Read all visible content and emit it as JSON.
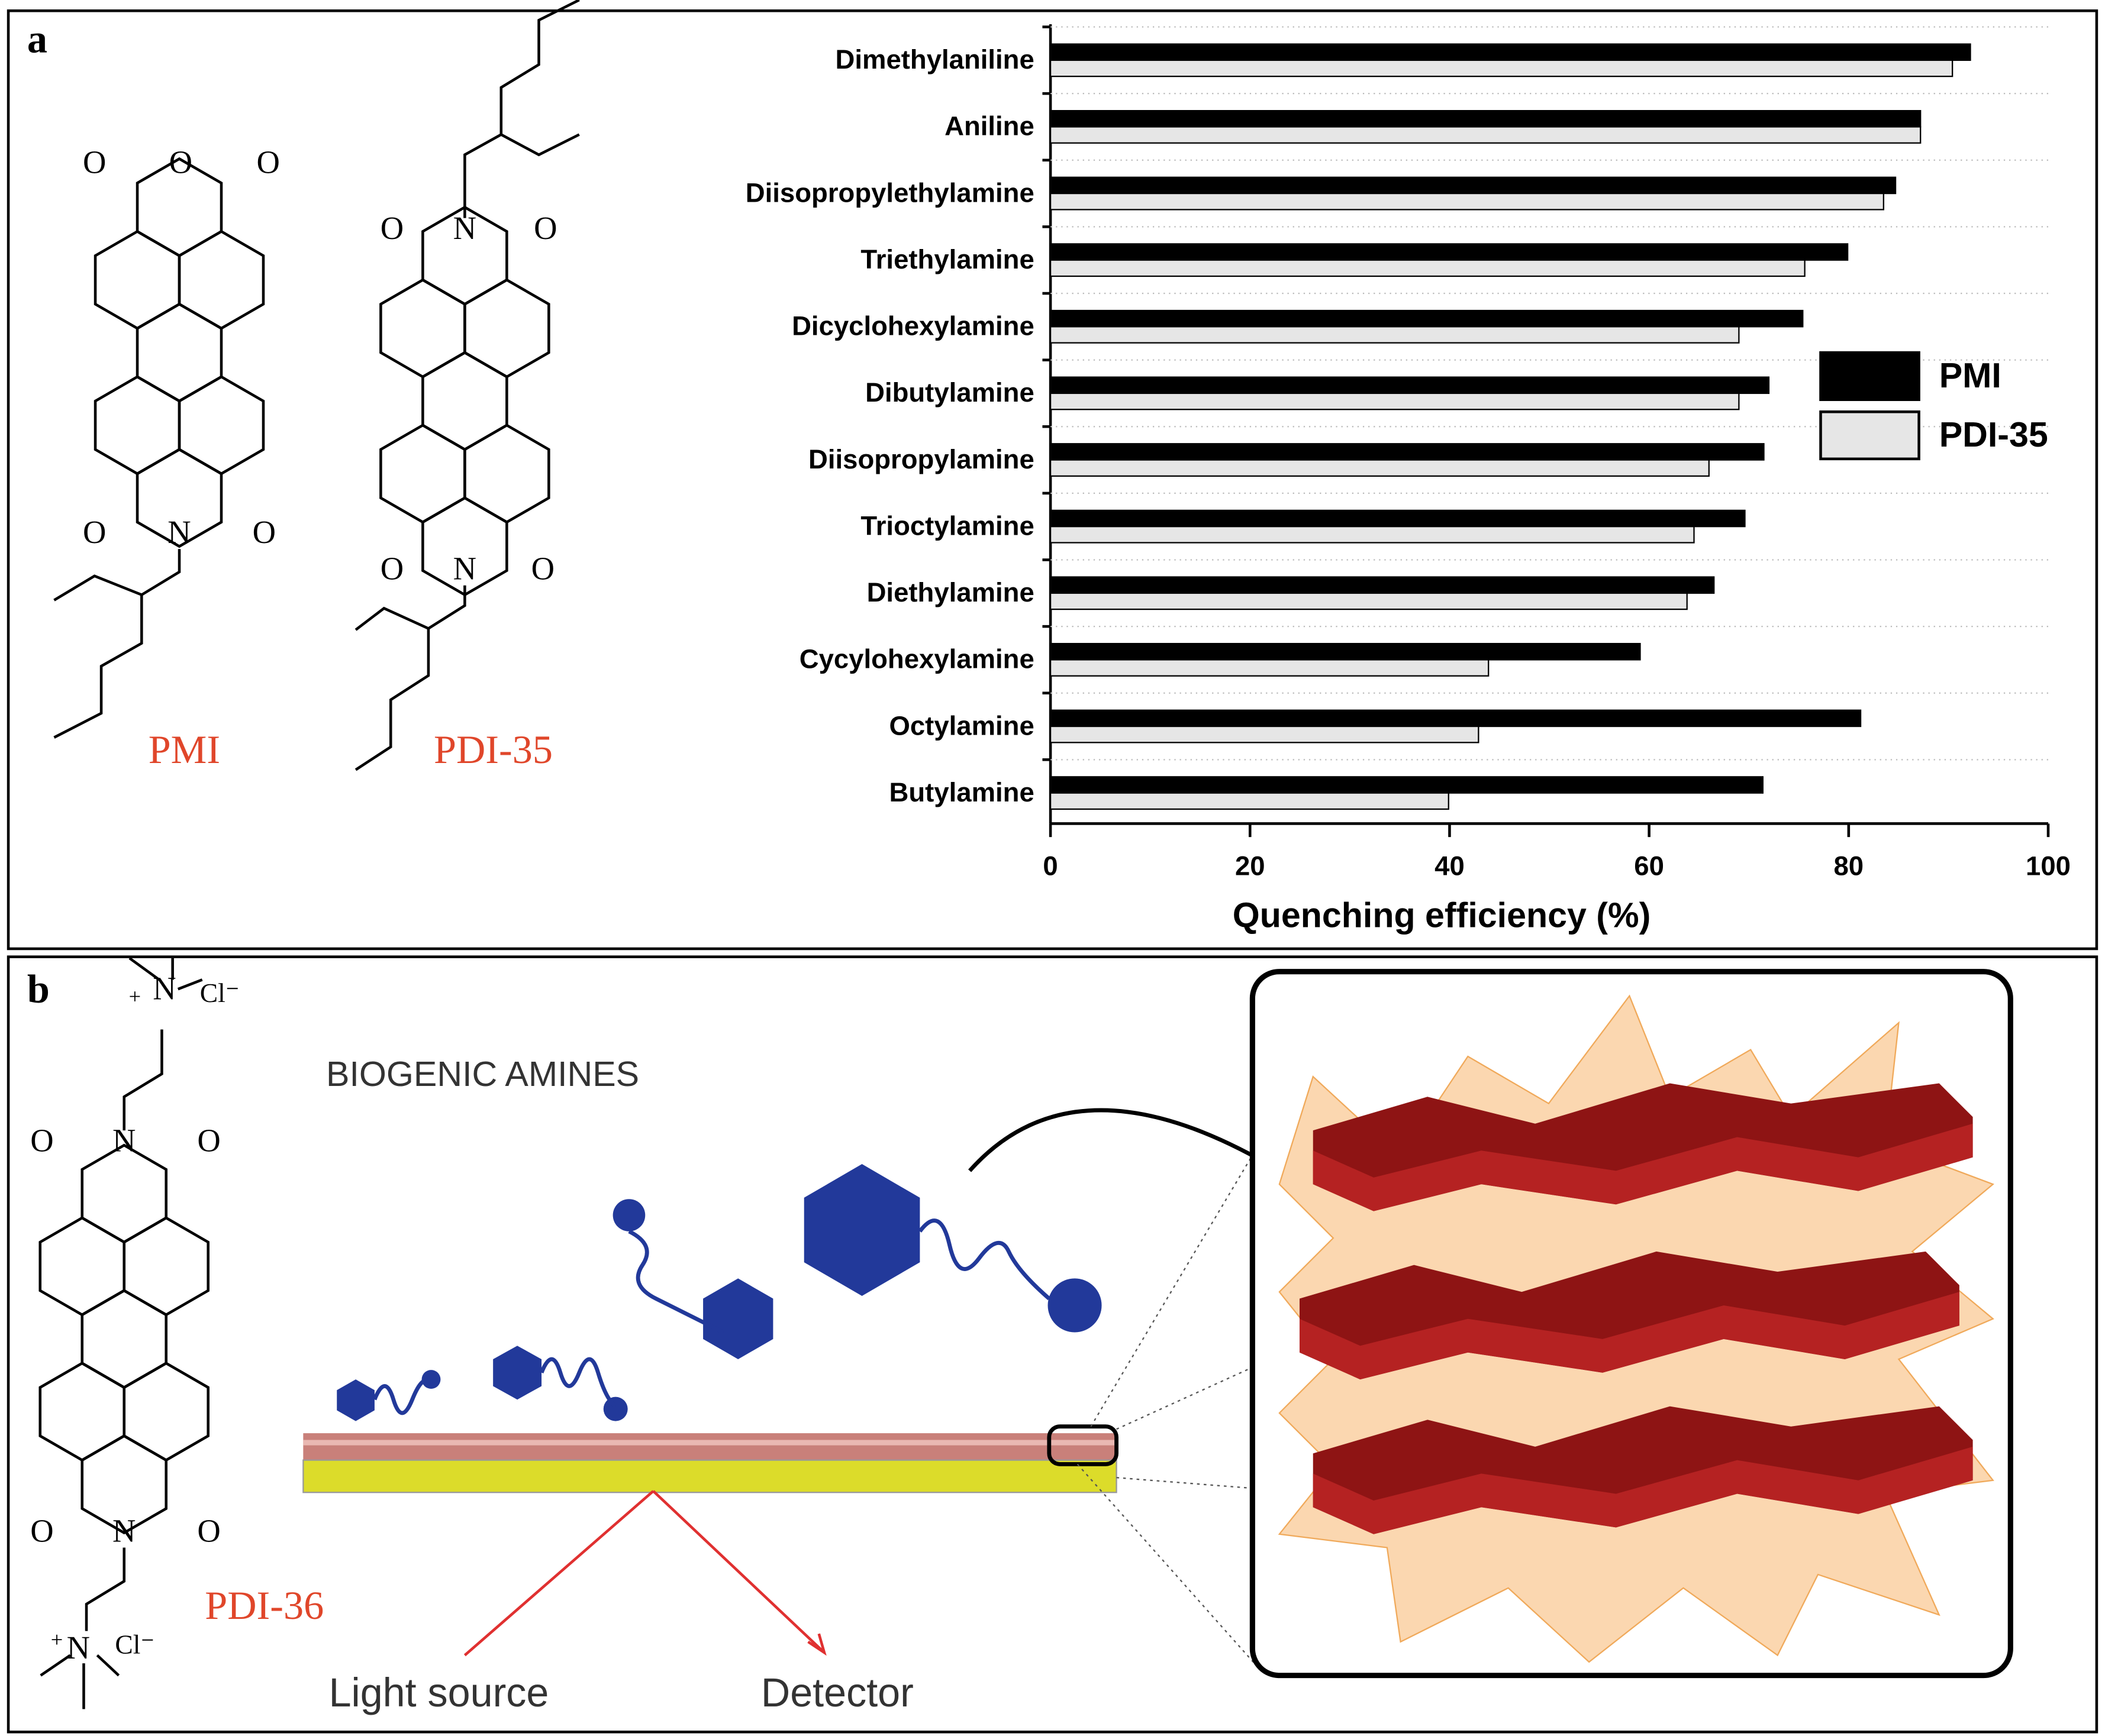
{
  "chart_data": {
    "type": "hbar",
    "xlabel": "Quenching efficiency (%)",
    "categories": [
      "Dimethylaniline",
      "Aniline",
      "Diisopropylethylamine",
      "Triethylamine",
      "Dicyclohexylamine",
      "Dibutylamine",
      "Diisopropylamine",
      "Trioctylamine",
      "Diethylamine",
      "Cycylohexylamine",
      "Octylamine",
      "Butylamine"
    ],
    "series": [
      {
        "name": "PMI",
        "color": "#000000",
        "values": [
          92.2,
          87.2,
          84.7,
          79.9,
          75.4,
          72,
          71.5,
          69.6,
          66.5,
          59.1,
          81.2,
          71.4
        ]
      },
      {
        "name": "PDI-35",
        "color": "#e6e6e6",
        "values": [
          90.4,
          87.2,
          83.5,
          75.6,
          69,
          69,
          66,
          64.5,
          63.8,
          43.9,
          42.9,
          39.9
        ]
      }
    ],
    "xlim": [
      0,
      100
    ],
    "xticks": [
      0,
      20,
      40,
      60,
      80,
      100
    ],
    "legend": "right"
  },
  "panels": [
    "a",
    "b"
  ],
  "molecules": {
    "pmi": {
      "label": "PMI",
      "atoms": [
        "O",
        "O",
        "O",
        "O",
        "N",
        "O"
      ]
    },
    "pdi35": {
      "label": "PDI-35",
      "atoms": [
        "O",
        "N",
        "O",
        "O",
        "N",
        "O"
      ]
    },
    "pdi36": {
      "label": "PDI-36",
      "atoms": [
        "O",
        "N",
        "O",
        "O",
        "N",
        "O",
        "N",
        "Cl⁻",
        "+",
        "N",
        "Cl⁻",
        "+"
      ]
    }
  },
  "diagram": {
    "title": "BIOGENIC AMINES",
    "source": "Light source",
    "detector": "Detector"
  }
}
